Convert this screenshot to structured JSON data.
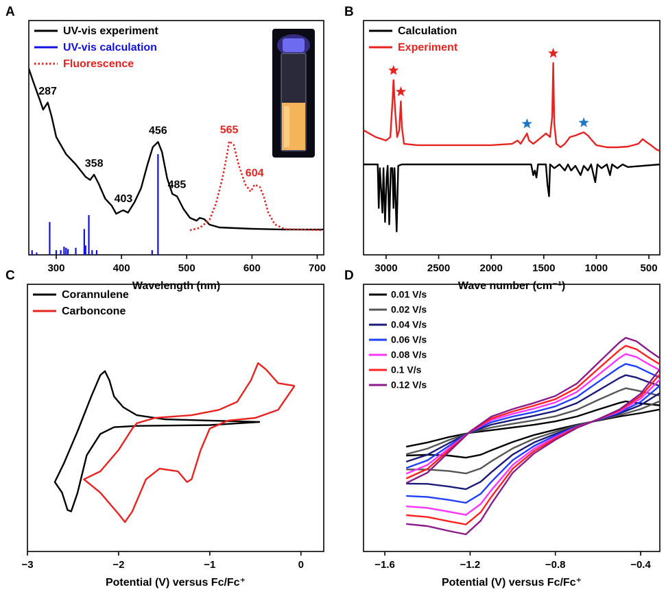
{
  "chart_data": [
    {
      "type": "line",
      "panel_label": "A",
      "xlabel": "Wavelength (nm)",
      "xlim": [
        258,
        710
      ],
      "xticks": [
        300,
        400,
        500,
        600,
        700
      ],
      "ylim": [
        0,
        1
      ],
      "legend": "upper left",
      "legend_text_colored": true,
      "series": [
        {
          "name": "UV-vis experiment",
          "color": "#000000",
          "style": "solid",
          "x": [
            258,
            265,
            275,
            280,
            287,
            293,
            300,
            315,
            330,
            345,
            352,
            358,
            365,
            375,
            385,
            392,
            400,
            403,
            410,
            420,
            430,
            440,
            448,
            456,
            462,
            470,
            478,
            485,
            495,
            505,
            515,
            520,
            527,
            535,
            550,
            600,
            650,
            710
          ],
          "values": [
            0.795,
            0.737,
            0.66,
            0.62,
            0.65,
            0.59,
            0.503,
            0.43,
            0.386,
            0.333,
            0.32,
            0.342,
            0.304,
            0.24,
            0.21,
            0.175,
            0.187,
            0.19,
            0.18,
            0.225,
            0.284,
            0.386,
            0.46,
            0.482,
            0.44,
            0.327,
            0.26,
            0.25,
            0.196,
            0.158,
            0.146,
            0.158,
            0.152,
            0.129,
            0.117,
            0.111,
            0.108,
            0.108
          ],
          "peak_labels": [
            287,
            358,
            403,
            456,
            485
          ]
        },
        {
          "name": "UV-vis calculation",
          "color": "#1010e0",
          "style": "sticks",
          "x": [
            263,
            270,
            290,
            300,
            307,
            312,
            315,
            318,
            330,
            343,
            345,
            350,
            355,
            362,
            447,
            456
          ],
          "values": [
            0.02,
            0.01,
            0.14,
            0.02,
            0.02,
            0.035,
            0.03,
            0.025,
            0.03,
            0.11,
            0.04,
            0.17,
            0.02,
            0.02,
            0.02,
            0.43
          ]
        },
        {
          "name": "Fluorescence",
          "color": "#e8221e",
          "style": "dotted",
          "x": [
            505,
            520,
            535,
            545,
            555,
            562,
            565,
            572,
            580,
            590,
            598,
            604,
            612,
            618,
            625,
            635,
            650,
            710
          ],
          "values": [
            0.105,
            0.115,
            0.15,
            0.22,
            0.33,
            0.43,
            0.485,
            0.47,
            0.38,
            0.3,
            0.27,
            0.3,
            0.29,
            0.25,
            0.18,
            0.13,
            0.11,
            0.105
          ],
          "peak_labels": [
            565,
            604
          ]
        }
      ]
    },
    {
      "type": "line",
      "panel_label": "B",
      "xlabel": "Wave number (cm⁻¹)",
      "xlim": [
        3215,
        396
      ],
      "xticks": [
        3000,
        2500,
        2000,
        1500,
        1000,
        500
      ],
      "ylim": [
        0,
        1
      ],
      "legend": "upper left",
      "legend_text_colored": true,
      "series": [
        {
          "name": "Calculation",
          "color": "#000000",
          "style": "solid",
          "x": [
            3215,
            3080,
            3070,
            3060,
            3035,
            3025,
            3010,
            2995,
            2985,
            2970,
            2955,
            2940,
            2930,
            2920,
            2900,
            2885,
            2850,
            1620,
            1600,
            1585,
            1570,
            1555,
            1480,
            1465,
            1450,
            1440,
            1400,
            1350,
            1300,
            1270,
            1240,
            1200,
            1150,
            1120,
            1080,
            1050,
            1010,
            990,
            950,
            900,
            870,
            850,
            800,
            750,
            700,
            396
          ],
          "values": [
            0.386,
            0.386,
            0.2,
            0.37,
            0.18,
            0.37,
            0.14,
            0.33,
            0.38,
            0.13,
            0.37,
            0.37,
            0.2,
            0.37,
            0.1,
            0.38,
            0.386,
            0.386,
            0.34,
            0.36,
            0.33,
            0.386,
            0.386,
            0.3,
            0.25,
            0.386,
            0.37,
            0.386,
            0.36,
            0.386,
            0.36,
            0.38,
            0.34,
            0.38,
            0.36,
            0.386,
            0.31,
            0.386,
            0.37,
            0.386,
            0.34,
            0.386,
            0.37,
            0.386,
            0.375,
            0.386
          ]
        },
        {
          "name": "Experiment",
          "color": "#e8221e",
          "style": "solid",
          "x": [
            3215,
            3100,
            3000,
            2960,
            2940,
            2930,
            2915,
            2895,
            2875,
            2860,
            2850,
            2830,
            2700,
            2500,
            2000,
            1800,
            1750,
            1720,
            1680,
            1660,
            1640,
            1600,
            1520,
            1480,
            1440,
            1420,
            1410,
            1400,
            1380,
            1340,
            1300,
            1250,
            1200,
            1150,
            1120,
            1080,
            1040,
            1000,
            900,
            800,
            700,
            600,
            560,
            520,
            480,
            430,
            396
          ],
          "values": [
            0.532,
            0.503,
            0.488,
            0.503,
            0.649,
            0.746,
            0.62,
            0.503,
            0.532,
            0.655,
            0.547,
            0.474,
            0.468,
            0.468,
            0.468,
            0.474,
            0.488,
            0.474,
            0.503,
            0.518,
            0.488,
            0.474,
            0.503,
            0.518,
            0.503,
            0.591,
            0.819,
            0.561,
            0.474,
            0.459,
            0.474,
            0.503,
            0.509,
            0.518,
            0.523,
            0.509,
            0.488,
            0.468,
            0.459,
            0.459,
            0.462,
            0.474,
            0.494,
            0.48,
            0.468,
            0.45,
            0.444
          ],
          "stars": {
            "x": [
              2930,
              2860,
              1410,
              1660,
              1120
            ],
            "colors": [
              "#e8221e",
              "#e8221e",
              "#e8221e",
              "#1f77c8",
              "#1f77c8"
            ]
          }
        }
      ]
    },
    {
      "type": "line",
      "panel_label": "C",
      "xlabel": "Potential (V) versus Fc/Fc⁺",
      "xlim": [
        -3,
        0.25
      ],
      "xticks": [
        {
          "value": -3,
          "label": "−3"
        },
        {
          "value": -2,
          "label": "−2"
        },
        {
          "value": -1,
          "label": "−1"
        },
        0
      ],
      "ylim": [
        0,
        1
      ],
      "legend": "upper left",
      "legend_text_colored": false,
      "series": [
        {
          "name": "Corannulene",
          "color": "#000000",
          "style": "solid",
          "x": [
            -0.45,
            -1.0,
            -1.8,
            -2.05,
            -2.2,
            -2.35,
            -2.45,
            -2.52,
            -2.56,
            -2.62,
            -2.7,
            -2.6,
            -2.45,
            -2.3,
            -2.2,
            -2.15,
            -2.1,
            -2.05,
            -1.95,
            -1.8,
            -1.5,
            -1.0,
            -0.45
          ],
          "values": [
            0.485,
            0.473,
            0.47,
            0.465,
            0.44,
            0.36,
            0.22,
            0.15,
            0.155,
            0.22,
            0.26,
            0.33,
            0.45,
            0.58,
            0.66,
            0.675,
            0.64,
            0.58,
            0.54,
            0.51,
            0.495,
            0.49,
            0.485
          ]
        },
        {
          "name": "Carboncone",
          "color": "#e8221e",
          "style": "solid",
          "x": [
            -0.07,
            -0.25,
            -0.5,
            -0.8,
            -1.0,
            -1.1,
            -1.2,
            -1.25,
            -1.35,
            -1.55,
            -1.7,
            -1.85,
            -1.93,
            -2.0,
            -2.2,
            -2.38,
            -2.2,
            -2.0,
            -1.85,
            -1.8,
            -1.6,
            -1.2,
            -0.9,
            -0.7,
            -0.55,
            -0.47,
            -0.38,
            -0.25,
            -0.07
          ],
          "values": [
            0.62,
            0.53,
            0.5,
            0.49,
            0.46,
            0.38,
            0.27,
            0.26,
            0.3,
            0.31,
            0.27,
            0.15,
            0.11,
            0.14,
            0.22,
            0.27,
            0.3,
            0.38,
            0.46,
            0.48,
            0.5,
            0.51,
            0.53,
            0.56,
            0.64,
            0.705,
            0.68,
            0.63,
            0.62
          ]
        }
      ]
    },
    {
      "type": "line",
      "panel_label": "D",
      "xlabel": "Potential (V) versus Fc/Fc⁺",
      "xlim": [
        -1.7,
        -0.31
      ],
      "xticks": [
        {
          "value": -1.6,
          "label": "−1.6"
        },
        {
          "value": -1.2,
          "label": "−1.2"
        },
        {
          "value": -0.8,
          "label": "−0.8"
        },
        {
          "value": -0.4,
          "label": "−0.4"
        }
      ],
      "ylim": [
        0,
        1
      ],
      "legend": "upper left",
      "legend_text_colored": false,
      "x": [
        -1.5,
        -1.4,
        -1.3,
        -1.2,
        -1.1,
        -1.0,
        -0.9,
        -0.8,
        -0.7,
        -0.6,
        -0.5,
        -0.47,
        -0.42,
        -0.36,
        -0.3,
        -0.3,
        -0.4,
        -0.5,
        -0.6,
        -0.7,
        -0.8,
        -0.9,
        -1.0,
        -1.1,
        -1.15,
        -1.22,
        -1.3,
        -1.4,
        -1.5
      ],
      "series": [
        {
          "name": "0.01 V/s",
          "color": "#000000",
          "style": "solid",
          "values": [
            0.392,
            0.408,
            0.428,
            0.444,
            0.454,
            0.464,
            0.474,
            0.487,
            0.505,
            0.531,
            0.556,
            0.562,
            0.556,
            0.551,
            0.546,
            0.533,
            0.518,
            0.505,
            0.49,
            0.474,
            0.456,
            0.436,
            0.41,
            0.379,
            0.362,
            0.351,
            0.359,
            0.362,
            0.359
          ]
        },
        {
          "name": "0.02 V/s",
          "color": "#555555",
          "style": "solid",
          "values": [
            0.364,
            0.385,
            0.417,
            0.445,
            0.464,
            0.478,
            0.491,
            0.506,
            0.53,
            0.567,
            0.602,
            0.611,
            0.603,
            0.592,
            0.581,
            0.566,
            0.533,
            0.51,
            0.491,
            0.472,
            0.448,
            0.422,
            0.386,
            0.338,
            0.311,
            0.292,
            0.301,
            0.307,
            0.307
          ]
        },
        {
          "name": "0.04 V/s",
          "color": "#1a1a7a",
          "style": "solid",
          "values": [
            0.336,
            0.362,
            0.405,
            0.446,
            0.475,
            0.492,
            0.508,
            0.526,
            0.555,
            0.602,
            0.649,
            0.66,
            0.651,
            0.633,
            0.617,
            0.598,
            0.548,
            0.516,
            0.492,
            0.469,
            0.44,
            0.408,
            0.363,
            0.297,
            0.261,
            0.233,
            0.243,
            0.253,
            0.254
          ]
        },
        {
          "name": "0.06 V/s",
          "color": "#1f3fff",
          "style": "solid",
          "values": [
            0.312,
            0.341,
            0.395,
            0.447,
            0.484,
            0.505,
            0.522,
            0.543,
            0.578,
            0.634,
            0.689,
            0.702,
            0.692,
            0.669,
            0.647,
            0.627,
            0.56,
            0.52,
            0.493,
            0.467,
            0.434,
            0.395,
            0.342,
            0.261,
            0.216,
            0.182,
            0.193,
            0.204,
            0.208
          ]
        },
        {
          "name": "0.08 V/s",
          "color": "#ff33ff",
          "style": "solid",
          "values": [
            0.291,
            0.324,
            0.386,
            0.448,
            0.492,
            0.515,
            0.535,
            0.558,
            0.597,
            0.66,
            0.724,
            0.739,
            0.728,
            0.7,
            0.674,
            0.651,
            0.572,
            0.524,
            0.494,
            0.465,
            0.428,
            0.385,
            0.324,
            0.23,
            0.178,
            0.137,
            0.149,
            0.163,
            0.169
          ]
        },
        {
          "name": "0.1 V/s",
          "color": "#ff2020",
          "style": "solid",
          "values": [
            0.273,
            0.309,
            0.379,
            0.448,
            0.498,
            0.524,
            0.546,
            0.57,
            0.612,
            0.683,
            0.753,
            0.77,
            0.757,
            0.725,
            0.696,
            0.672,
            0.581,
            0.528,
            0.494,
            0.464,
            0.423,
            0.376,
            0.31,
            0.205,
            0.147,
            0.101,
            0.113,
            0.129,
            0.136
          ]
        },
        {
          "name": "0.12 V/s",
          "color": "#8b1a8b",
          "style": "solid",
          "values": [
            0.256,
            0.295,
            0.372,
            0.449,
            0.505,
            0.533,
            0.556,
            0.582,
            0.628,
            0.705,
            0.782,
            0.8,
            0.787,
            0.751,
            0.718,
            0.692,
            0.59,
            0.531,
            0.495,
            0.462,
            0.418,
            0.367,
            0.295,
            0.179,
            0.115,
            0.064,
            0.077,
            0.095,
            0.103
          ]
        }
      ]
    }
  ]
}
